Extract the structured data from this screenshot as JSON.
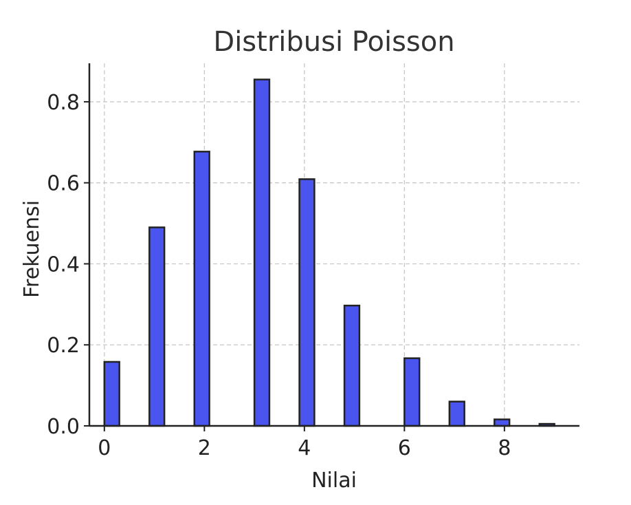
{
  "chart_data": {
    "type": "bar",
    "title": "Distribusi Poisson",
    "xlabel": "Nilai",
    "ylabel": "Frekuensi",
    "bar_color": "#4a55f0",
    "edge_color": "#222222",
    "grid": true,
    "xlim": [
      -0.3,
      9.5
    ],
    "ylim": [
      0,
      0.895
    ],
    "xticks": [
      0,
      2,
      4,
      6,
      8
    ],
    "xtick_labels": [
      "0",
      "2",
      "4",
      "6",
      "8"
    ],
    "yticks": [
      0.0,
      0.2,
      0.4,
      0.6,
      0.8
    ],
    "ytick_labels": [
      "0.0",
      "0.2",
      "0.4",
      "0.6",
      "0.8"
    ],
    "bars": [
      {
        "x": 0.0,
        "x_end": 0.3,
        "value": 0.158
      },
      {
        "x": 0.9,
        "x_end": 1.2,
        "value": 0.49
      },
      {
        "x": 1.8,
        "x_end": 2.1,
        "value": 0.677
      },
      {
        "x": 3.0,
        "x_end": 3.3,
        "value": 0.855
      },
      {
        "x": 3.9,
        "x_end": 4.2,
        "value": 0.609
      },
      {
        "x": 4.8,
        "x_end": 5.1,
        "value": 0.297
      },
      {
        "x": 6.0,
        "x_end": 6.3,
        "value": 0.167
      },
      {
        "x": 6.9,
        "x_end": 7.2,
        "value": 0.06
      },
      {
        "x": 7.8,
        "x_end": 8.1,
        "value": 0.016
      },
      {
        "x": 8.7,
        "x_end": 9.0,
        "value": 0.005
      }
    ]
  }
}
